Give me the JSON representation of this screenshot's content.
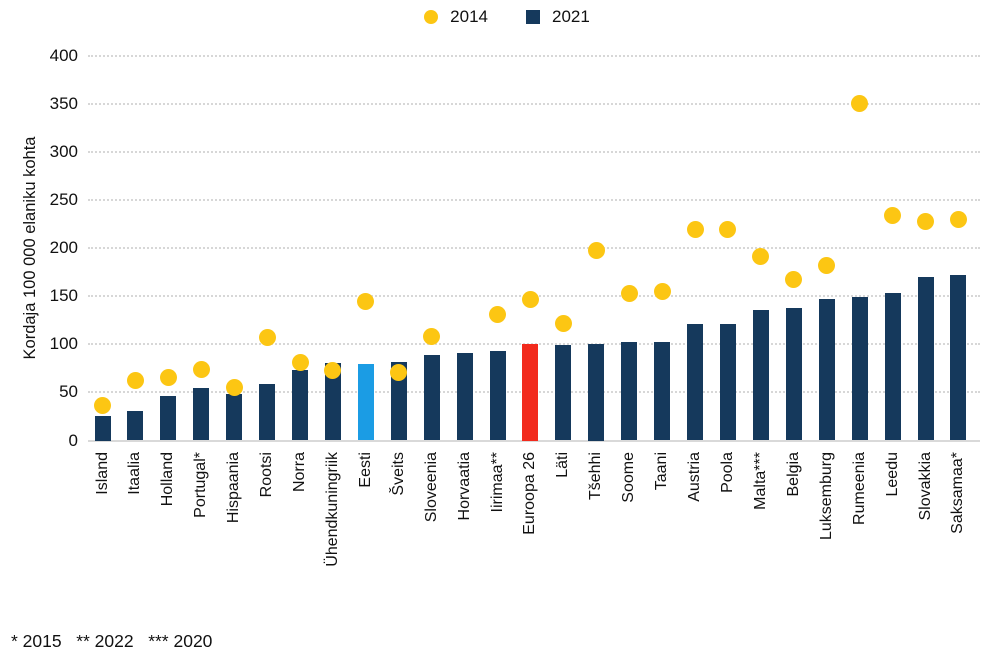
{
  "legend": {
    "items": [
      {
        "label": "2014",
        "marker": "circle",
        "color": "#FCC613"
      },
      {
        "label": "2021",
        "marker": "square",
        "color": "#15395C"
      }
    ]
  },
  "colors": {
    "bar_default": "#15395C",
    "bar_highlight_estonia": "#1B9CE4",
    "bar_highlight_europe": "#F22A1D",
    "dot_2014": "#FCC613",
    "gridline": "#D7D7D7",
    "axis_line": "#D9D9D9",
    "text": "#111111"
  },
  "chart_data": {
    "type": "bar",
    "title": "",
    "xlabel": "",
    "ylabel": "Kordaja 100 000 elaniku kohta",
    "ylim": [
      0,
      400
    ],
    "yticks": [
      0,
      50,
      100,
      150,
      200,
      250,
      300,
      350,
      400
    ],
    "grid": "horizontal dotted",
    "legend_position": "top-center",
    "footnote": "* 2015   ** 2022   *** 2020",
    "categories": [
      "Island",
      "Itaalia",
      "Holland",
      "Portugal*",
      "Hispaania",
      "Rootsi",
      "Norra",
      "Ühendkuningriik",
      "Eesti",
      "Šveits",
      "Sloveenia",
      "Horvaatia",
      "Iirimaa**",
      "Euroopa 26",
      "Läti",
      "Tšehhi",
      "Soome",
      "Taani",
      "Austria",
      "Poola",
      "Malta***",
      "Belgia",
      "Luksemburg",
      "Rumeenia",
      "Leedu",
      "Slovakkia",
      "Saksamaa*"
    ],
    "series": [
      {
        "name": "2014",
        "render": "scatter",
        "color": "#FCC613",
        "values": [
          36,
          62,
          66,
          74,
          55,
          107,
          81,
          73,
          145,
          71,
          108,
          null,
          131,
          147,
          122,
          198,
          153,
          155,
          220,
          220,
          191,
          167,
          182,
          351,
          234,
          228,
          230
        ]
      },
      {
        "name": "2021",
        "render": "bar",
        "color": "#15395C",
        "values": [
          25,
          31,
          46,
          55,
          48,
          59,
          73,
          81,
          80,
          82,
          89,
          91,
          93,
          100,
          99,
          100,
          102,
          102,
          121,
          121,
          136,
          138,
          147,
          149,
          153,
          170,
          172
        ]
      }
    ],
    "bar_color_overrides": {
      "Eesti": "#1B9CE4",
      "Euroopa 26": "#F22A1D"
    }
  }
}
